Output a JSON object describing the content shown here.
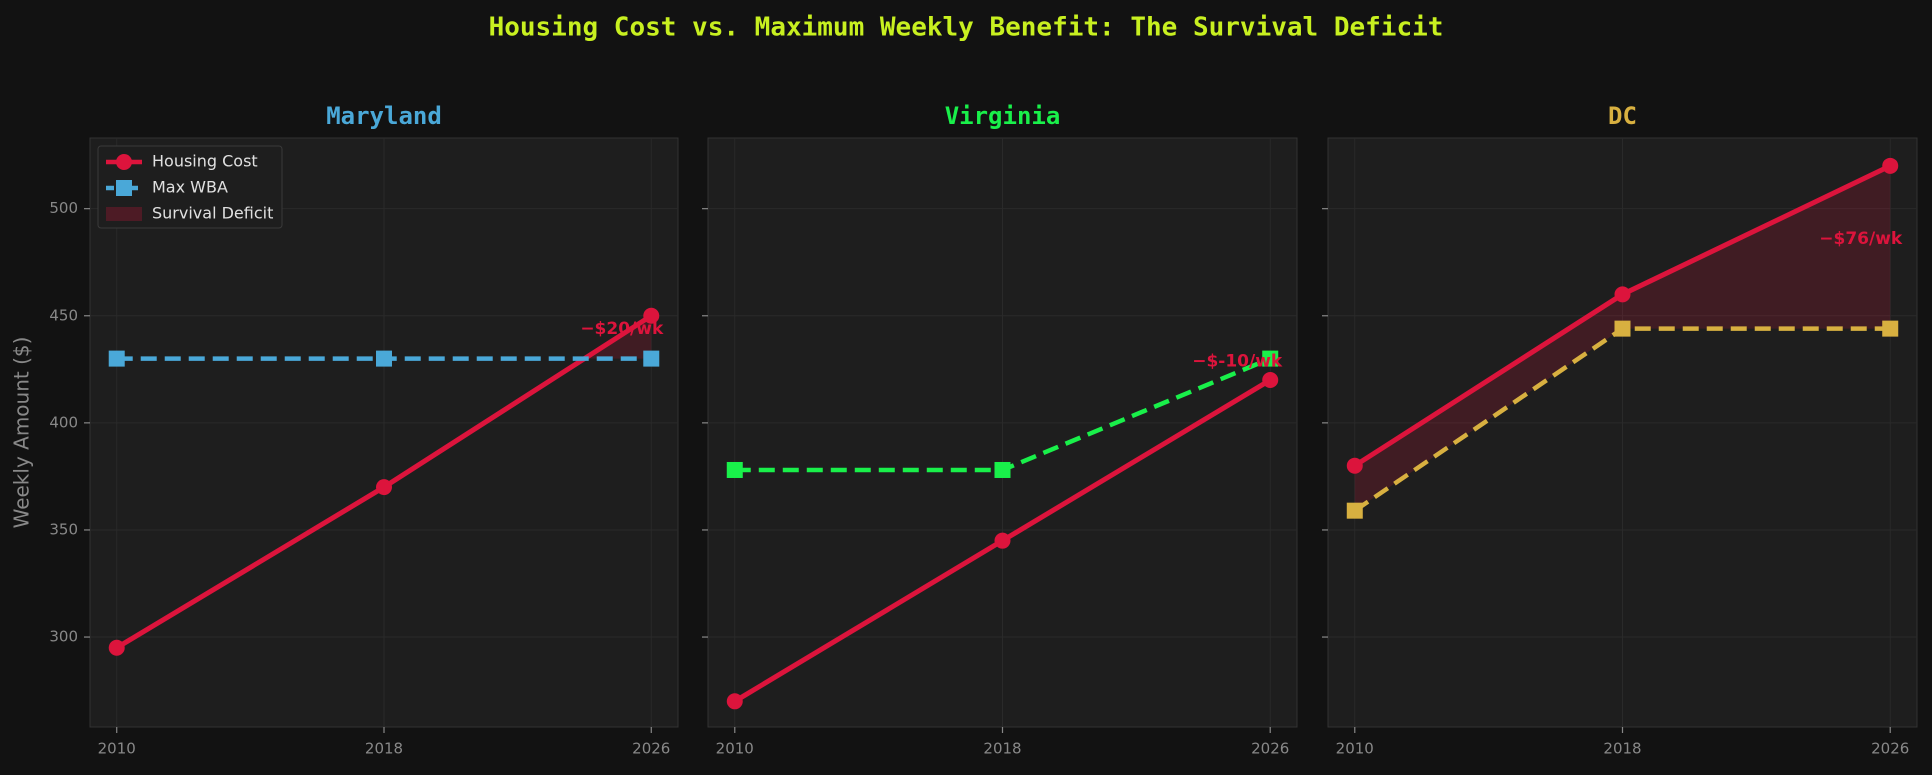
{
  "title": "Housing Cost vs. Maximum Weekly Benefit: The Survival Deficit",
  "chart_data": [
    {
      "type": "line",
      "title": "Maryland",
      "title_color": "#4aa8d8",
      "ylabel": "Weekly Amount ($)",
      "x": [
        2010,
        2018,
        2026
      ],
      "xlim": [
        2009.2,
        2026.8
      ],
      "xticks": [
        2010,
        2018,
        2026
      ],
      "ylim": [
        258,
        533
      ],
      "yticks": [
        300,
        350,
        400,
        450,
        500
      ],
      "grid": true,
      "legend": "upper left",
      "deficit_label": "Survival Deficit",
      "deficit_color": "#dc143c",
      "annotation": "−$20/wk",
      "series": [
        {
          "name": "Housing Cost",
          "color": "#dc143c",
          "values": [
            295,
            370,
            450
          ]
        },
        {
          "name": "Max WBA",
          "color": "#4aa8d8",
          "values": [
            430,
            430,
            430
          ]
        }
      ]
    },
    {
      "type": "line",
      "title": "Virginia",
      "title_color": "#19f04a",
      "x": [
        2010,
        2018,
        2026
      ],
      "xlim": [
        2009.2,
        2026.8
      ],
      "xticks": [
        2010,
        2018,
        2026
      ],
      "ylim": [
        258,
        533
      ],
      "yticks": [
        300,
        350,
        400,
        450,
        500
      ],
      "grid": true,
      "deficit_color": "#dc143c",
      "annotation": "−$-10/wk",
      "series": [
        {
          "name": "Housing Cost",
          "color": "#dc143c",
          "values": [
            270,
            345,
            420
          ]
        },
        {
          "name": "Max WBA",
          "color": "#19f04a",
          "values": [
            378,
            378,
            430
          ]
        }
      ]
    },
    {
      "type": "line",
      "title": "DC",
      "title_color": "#d8b040",
      "x": [
        2010,
        2018,
        2026
      ],
      "xlim": [
        2009.2,
        2026.8
      ],
      "xticks": [
        2010,
        2018,
        2026
      ],
      "ylim": [
        258,
        533
      ],
      "yticks": [
        300,
        350,
        400,
        450,
        500
      ],
      "grid": true,
      "deficit_color": "#dc143c",
      "annotation": "−$76/wk",
      "series": [
        {
          "name": "Housing Cost",
          "color": "#dc143c",
          "values": [
            380,
            460,
            520
          ]
        },
        {
          "name": "Max WBA",
          "color": "#d8b040",
          "values": [
            359,
            444,
            444
          ]
        }
      ]
    }
  ]
}
